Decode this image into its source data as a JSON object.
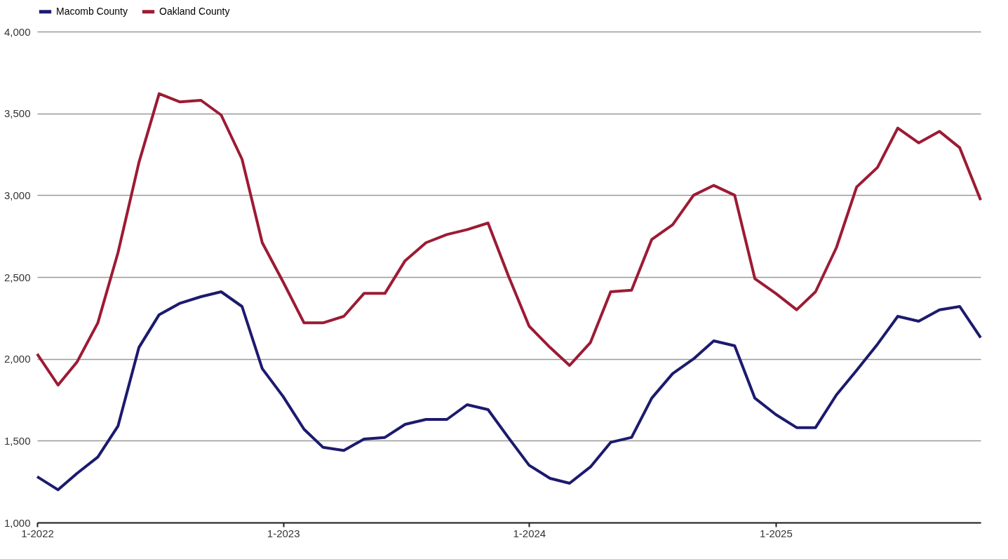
{
  "chart_data": {
    "type": "line",
    "x": [
      "2022-01",
      "2022-02",
      "2022-03",
      "2022-04",
      "2022-05",
      "2022-06",
      "2022-07",
      "2022-08",
      "2022-09",
      "2022-10",
      "2022-11",
      "2022-12",
      "2023-01",
      "2023-02",
      "2023-03",
      "2023-04",
      "2023-05",
      "2023-06",
      "2023-07",
      "2023-08",
      "2023-09",
      "2023-10",
      "2023-11",
      "2023-12",
      "2024-01",
      "2024-02",
      "2024-03",
      "2024-04",
      "2024-05",
      "2024-06",
      "2024-07",
      "2024-08",
      "2024-09",
      "2024-10",
      "2024-11",
      "2024-12",
      "2025-01",
      "2025-02",
      "2025-03",
      "2025-04",
      "2025-05",
      "2025-06",
      "2025-07",
      "2025-08",
      "2025-09",
      "2025-10",
      "2025-11"
    ],
    "series": [
      {
        "name": "Macomb County",
        "color": "#1c1a6e",
        "values": [
          1280,
          1200,
          1300,
          1400,
          1590,
          2070,
          2270,
          2340,
          2380,
          2410,
          2320,
          1940,
          1770,
          1570,
          1460,
          1440,
          1510,
          1520,
          1600,
          1630,
          1630,
          1720,
          1690,
          1520,
          1350,
          1270,
          1240,
          1340,
          1490,
          1520,
          1760,
          1910,
          2000,
          2110,
          2080,
          1760,
          1660,
          1580,
          1580,
          1780,
          1930,
          2090,
          2260,
          2230,
          2300,
          2320,
          2130
        ]
      },
      {
        "name": "Oakland County",
        "color": "#9c1b34",
        "values": [
          2030,
          1840,
          1980,
          2220,
          2650,
          3200,
          3620,
          3570,
          3580,
          3490,
          3220,
          2710,
          2470,
          2220,
          2220,
          2260,
          2400,
          2400,
          2600,
          2710,
          2760,
          2790,
          2830,
          2510,
          2200,
          2070,
          1960,
          2100,
          2410,
          2420,
          2730,
          2820,
          3000,
          3060,
          3000,
          2490,
          2400,
          2300,
          2410,
          2680,
          3050,
          3170,
          3410,
          3320,
          3390,
          3290,
          2970
        ]
      }
    ],
    "xlim": [
      "2022-01",
      "2025-11"
    ],
    "xticks": [
      {
        "value": "2022-01",
        "label": "1-2022"
      },
      {
        "value": "2023-01",
        "label": "1-2023"
      },
      {
        "value": "2024-01",
        "label": "1-2024"
      },
      {
        "value": "2025-01",
        "label": "1-2025"
      }
    ],
    "ylim": [
      1000,
      4000
    ],
    "yticks": [
      {
        "value": 1000,
        "label": "1,000"
      },
      {
        "value": 1500,
        "label": "1,500"
      },
      {
        "value": 2000,
        "label": "2,000"
      },
      {
        "value": 2500,
        "label": "2,500"
      },
      {
        "value": 3000,
        "label": "3,000"
      },
      {
        "value": 3500,
        "label": "3,500"
      },
      {
        "value": 4000,
        "label": "4,000"
      }
    ],
    "grid": "y",
    "legend": "top",
    "marker": "none",
    "line_style": "solid"
  }
}
